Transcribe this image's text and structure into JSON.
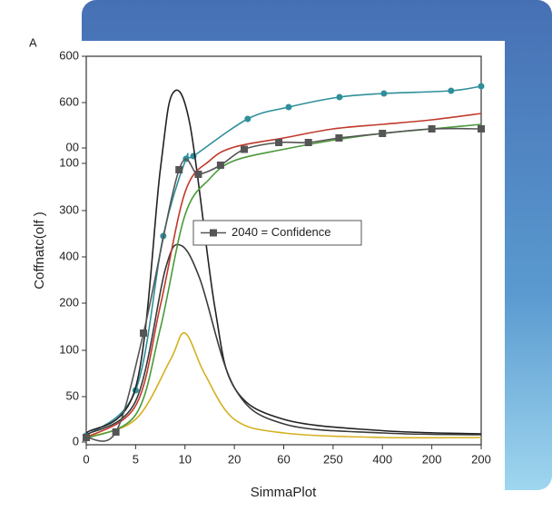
{
  "chart_data": {
    "type": "line",
    "ylabel": "Coffnatc(olf )",
    "xlabel": "SimmaPlot",
    "panel_label": "A",
    "xlim": [
      0,
      8
    ],
    "xticks": [
      {
        "value": 0,
        "label": "0"
      },
      {
        "value": 1,
        "label": "5"
      },
      {
        "value": 2,
        "label": "10"
      },
      {
        "value": 3,
        "label": "20"
      },
      {
        "value": 4,
        "label": "60"
      },
      {
        "value": 5,
        "label": "250"
      },
      {
        "value": 6,
        "label": "400"
      },
      {
        "value": 7,
        "label": "200"
      },
      {
        "value": 8,
        "label": "200"
      }
    ],
    "ylim": [
      -6,
      850
    ],
    "yticks": [
      0,
      {
        "value": 100,
        "label": "50"
      },
      {
        "value": 202,
        "label": "100"
      },
      {
        "value": 306,
        "label": "200"
      },
      {
        "value": 408,
        "label": "400"
      },
      {
        "value": 510,
        "label": "300"
      },
      {
        "value": 614,
        "label": "100"
      },
      {
        "value": 648,
        "label": "00"
      },
      {
        "value": 748,
        "label": "600"
      },
      {
        "value": 850,
        "label": "600"
      }
    ],
    "legend": "center",
    "series": [
      {
        "color": "#2f8f9a",
        "marker": "circle",
        "x": [
          0,
          1,
          1.56,
          2.02,
          2.17,
          3.27,
          4.1,
          5.13,
          6.03,
          7.39,
          8
        ],
        "values": [
          14,
          114,
          454,
          624,
          630,
          712,
          738,
          760,
          768,
          774,
          784
        ]
      },
      {
        "color": "#222222",
        "x": [
          0,
          1,
          1.5,
          1.75,
          2.1,
          2.6,
          3,
          4,
          6,
          8
        ],
        "values": [
          20,
          120,
          600,
          768,
          700,
          300,
          120,
          50,
          25,
          18
        ]
      },
      {
        "color": "#3a3a3a",
        "x": [
          0,
          1,
          1.6,
          1.9,
          2.3,
          3,
          4,
          6,
          8
        ],
        "values": [
          16,
          90,
          380,
          434,
          360,
          120,
          40,
          20,
          16
        ]
      },
      {
        "color": "#d4b020",
        "x": [
          0,
          1,
          1.7,
          2.0,
          2.4,
          3,
          4,
          6,
          8
        ],
        "values": [
          10,
          50,
          180,
          240,
          150,
          50,
          20,
          10,
          10
        ]
      },
      {
        "color": "#c0392b",
        "x": [
          0,
          1,
          1.5,
          2,
          2.5,
          3,
          4,
          5,
          6,
          7,
          8
        ],
        "values": [
          10,
          80,
          300,
          550,
          620,
          650,
          670,
          690,
          700,
          710,
          724
        ]
      },
      {
        "color": "#4a9a3a",
        "x": [
          0,
          1,
          1.5,
          2,
          2.5,
          3,
          4,
          5,
          6,
          7,
          8
        ],
        "values": [
          8,
          60,
          250,
          500,
          580,
          620,
          645,
          665,
          680,
          690,
          700
        ]
      },
      {
        "name": "2040 = Confidence",
        "color": "#555555",
        "marker": "square",
        "x": [
          0,
          0.6,
          1.16,
          1.88,
          2.27,
          2.72,
          3.2,
          3.9,
          4.5,
          5.12,
          6.0,
          7.0,
          8.0
        ],
        "values": [
          10,
          22,
          240,
          600,
          590,
          610,
          645,
          660,
          660,
          670,
          680,
          690,
          690
        ]
      }
    ]
  }
}
